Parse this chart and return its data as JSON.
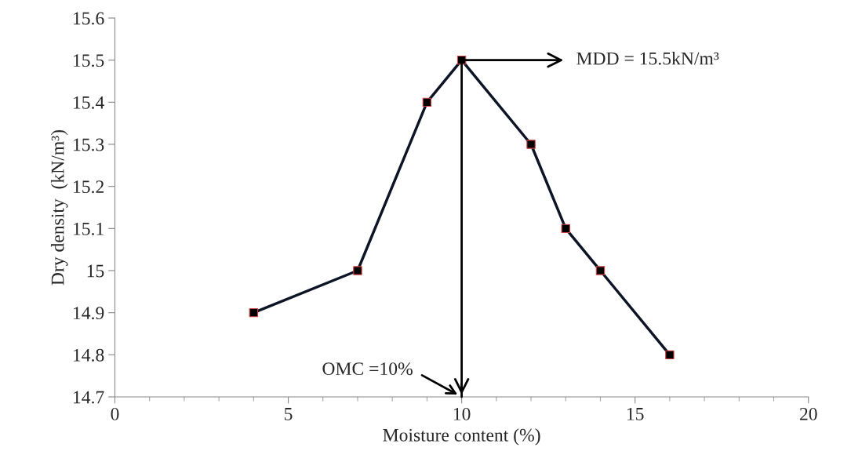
{
  "chart_data": {
    "type": "line",
    "xlabel": "Moisture content (%)",
    "ylabel": "Dry density  (kN/m³)",
    "x": [
      4,
      7,
      9,
      10,
      12,
      13,
      14,
      16
    ],
    "series": [
      {
        "color": "#0d1426",
        "values": [
          14.9,
          15.0,
          15.4,
          15.5,
          15.3,
          15.1,
          15.0,
          14.8
        ]
      }
    ],
    "marker": "square",
    "line_style": "solid",
    "grid": false,
    "xlim": [
      0,
      20
    ],
    "xticks": [
      0,
      5,
      10,
      15,
      20
    ],
    "ylim": [
      14.7,
      15.6
    ],
    "yticks": [
      14.7,
      14.8,
      14.9,
      15,
      15.1,
      15.2,
      15.3,
      15.4,
      15.5,
      15.6
    ],
    "ref_lines": [
      {
        "axis": "x",
        "value": 10,
        "label": "OMC =10%",
        "color": "#000000"
      }
    ],
    "annotations": [
      {
        "text": "MDD = 15.5kN/m³",
        "x": 10,
        "y": 15.5
      }
    ]
  }
}
